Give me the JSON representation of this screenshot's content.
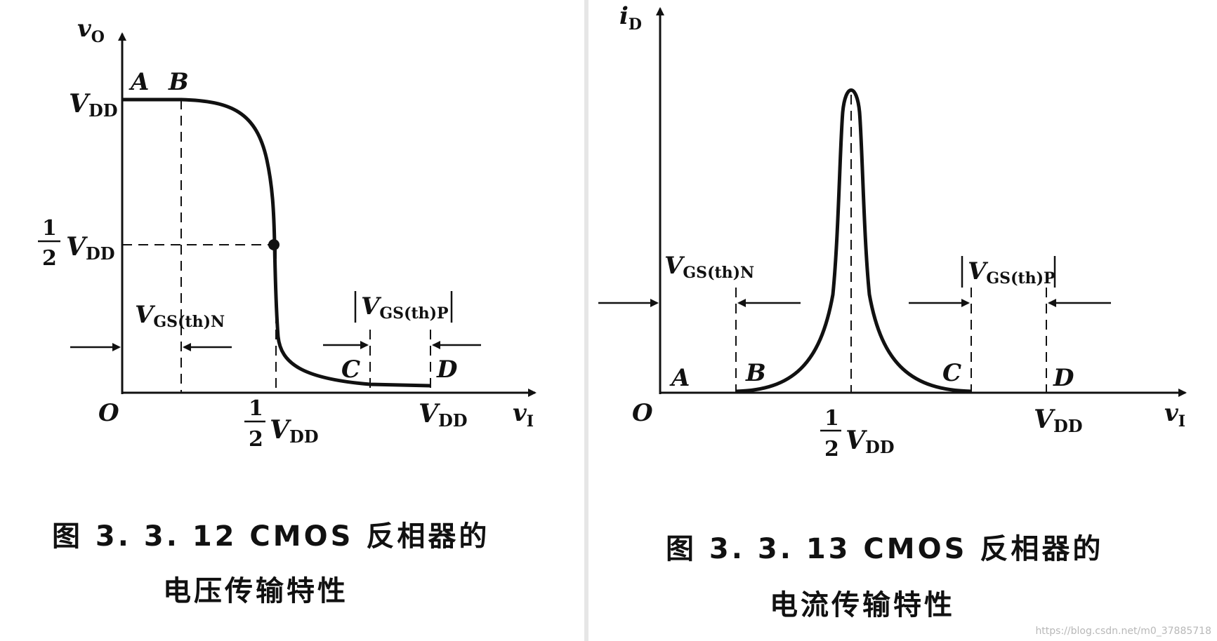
{
  "left_figure": {
    "y_axis_var": "v",
    "y_axis_sub": "O",
    "x_axis_var": "v",
    "x_axis_sub": "I",
    "origin": "O",
    "vdd": "V",
    "vdd_sub": "DD",
    "half_num": "1",
    "half_den": "2",
    "vgs_n": "V",
    "vgs_n_sub": "GS(th)N",
    "vgs_p": "V",
    "vgs_p_sub": "GS(th)P",
    "points": [
      "A",
      "B",
      "C",
      "D"
    ],
    "caption_line1": "图 3. 3. 12   CMOS 反相器的",
    "caption_line2": "电压传输特性"
  },
  "right_figure": {
    "y_axis_var": "i",
    "y_axis_sub": "D",
    "x_axis_var": "v",
    "x_axis_sub": "I",
    "origin": "O",
    "vdd": "V",
    "vdd_sub": "DD",
    "half_num": "1",
    "half_den": "2",
    "vgs_n": "V",
    "vgs_n_sub": "GS(th)N",
    "vgs_p": "V",
    "vgs_p_sub": "GS(th)P",
    "points": [
      "A",
      "B",
      "C",
      "D"
    ],
    "caption_line1": "图 3. 3. 13   CMOS 反相器的",
    "caption_line2": "电流传输特性"
  },
  "watermark": "https://blog.csdn.net/m0_37885718",
  "colors": {
    "ink": "#111111",
    "background": "#ffffff",
    "divider": "#e6e6e6"
  }
}
